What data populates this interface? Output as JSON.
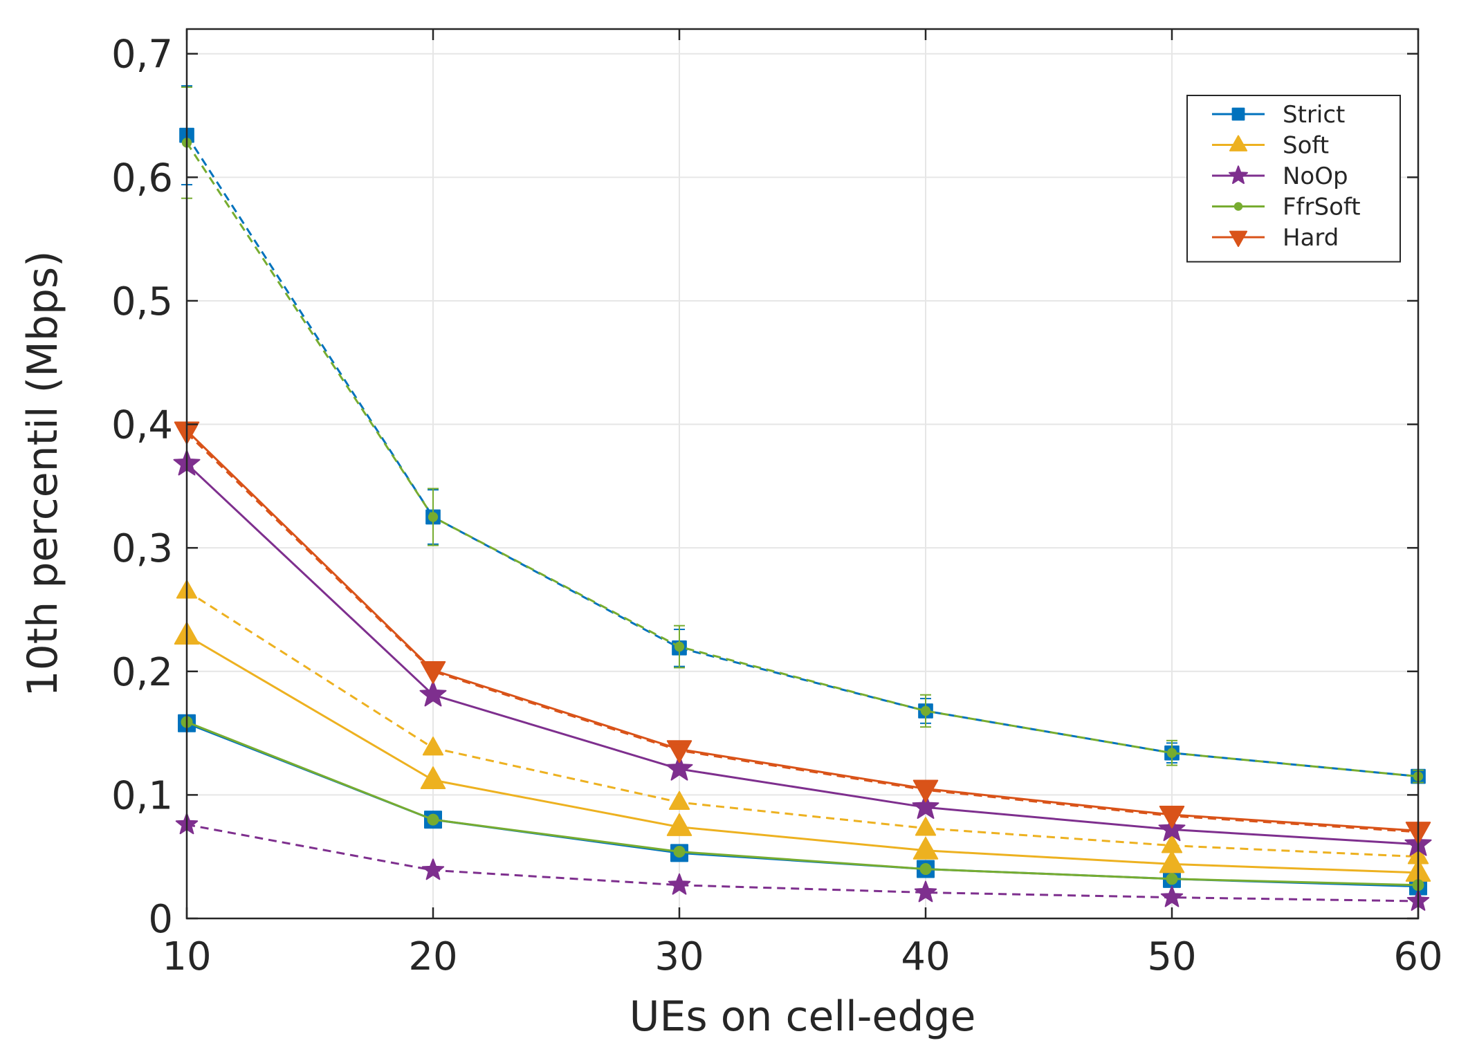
{
  "chart_data": {
    "type": "line",
    "xlabel": "UEs on cell-edge",
    "ylabel": "10th percentil (Mbps)",
    "xlim": [
      10,
      60
    ],
    "ylim": [
      0,
      0.72
    ],
    "xticks": [
      10,
      20,
      30,
      40,
      50,
      60
    ],
    "yticks": [
      0,
      0.1,
      0.2,
      0.3,
      0.4,
      0.5,
      0.6,
      0.7
    ],
    "x_tick_labels": [
      "10",
      "20",
      "30",
      "40",
      "50",
      "60"
    ],
    "y_tick_labels": [
      "0",
      "0,1",
      "0,2",
      "0,3",
      "0,4",
      "0,5",
      "0,6",
      "0,7"
    ],
    "grid": true,
    "legend_position": "top-right",
    "x": [
      10,
      20,
      30,
      40,
      50,
      60
    ],
    "series": [
      {
        "name": "Strict",
        "color": "#0072BD",
        "marker": "square",
        "dash": "solid",
        "show_in_legend": true,
        "values": [
          0.158,
          0.08,
          0.053,
          0.04,
          0.032,
          0.026
        ]
      },
      {
        "name": "Strict",
        "color": "#0072BD",
        "marker": "square",
        "dash": "dashed",
        "show_in_legend": false,
        "values": [
          0.634,
          0.325,
          0.219,
          0.168,
          0.134,
          0.115
        ],
        "errors": [
          0.04,
          0.022,
          0.015,
          0.01,
          0.008,
          0.005
        ]
      },
      {
        "name": "Soft",
        "color": "#EDB120",
        "marker": "triangle-up",
        "dash": "solid",
        "show_in_legend": true,
        "values": [
          0.229,
          0.112,
          0.074,
          0.055,
          0.044,
          0.037
        ]
      },
      {
        "name": "Soft",
        "color": "#EDB120",
        "marker": "triangle-up",
        "dash": "dashed",
        "show_in_legend": false,
        "values": [
          0.265,
          0.138,
          0.094,
          0.073,
          0.059,
          0.05
        ]
      },
      {
        "name": "NoOp",
        "color": "#7E2F8E",
        "marker": "star",
        "dash": "solid",
        "show_in_legend": true,
        "values": [
          0.368,
          0.181,
          0.121,
          0.09,
          0.072,
          0.06
        ]
      },
      {
        "name": "NoOp",
        "color": "#7E2F8E",
        "marker": "star",
        "dash": "dashed",
        "show_in_legend": false,
        "values": [
          0.076,
          0.039,
          0.027,
          0.021,
          0.017,
          0.014
        ]
      },
      {
        "name": "FfrSoft",
        "color": "#77AC30",
        "marker": "circle",
        "dash": "solid",
        "show_in_legend": true,
        "values": [
          0.159,
          0.08,
          0.054,
          0.04,
          0.032,
          0.027
        ]
      },
      {
        "name": "FfrSoft",
        "color": "#77AC30",
        "marker": "circle",
        "dash": "dashed",
        "show_in_legend": false,
        "values": [
          0.628,
          0.325,
          0.22,
          0.168,
          0.134,
          0.115
        ],
        "errors": [
          0.045,
          0.023,
          0.017,
          0.013,
          0.01,
          0.005
        ]
      },
      {
        "name": "Hard",
        "color": "#D95319",
        "marker": "triangle-down",
        "dash": "solid",
        "show_in_legend": true,
        "values": [
          0.395,
          0.201,
          0.137,
          0.105,
          0.084,
          0.071
        ]
      },
      {
        "name": "Hard",
        "color": "#D95319",
        "marker": "triangle-down",
        "dash": "dashed",
        "show_in_legend": false,
        "values": [
          0.393,
          0.2,
          0.136,
          0.104,
          0.083,
          0.07
        ]
      }
    ]
  }
}
